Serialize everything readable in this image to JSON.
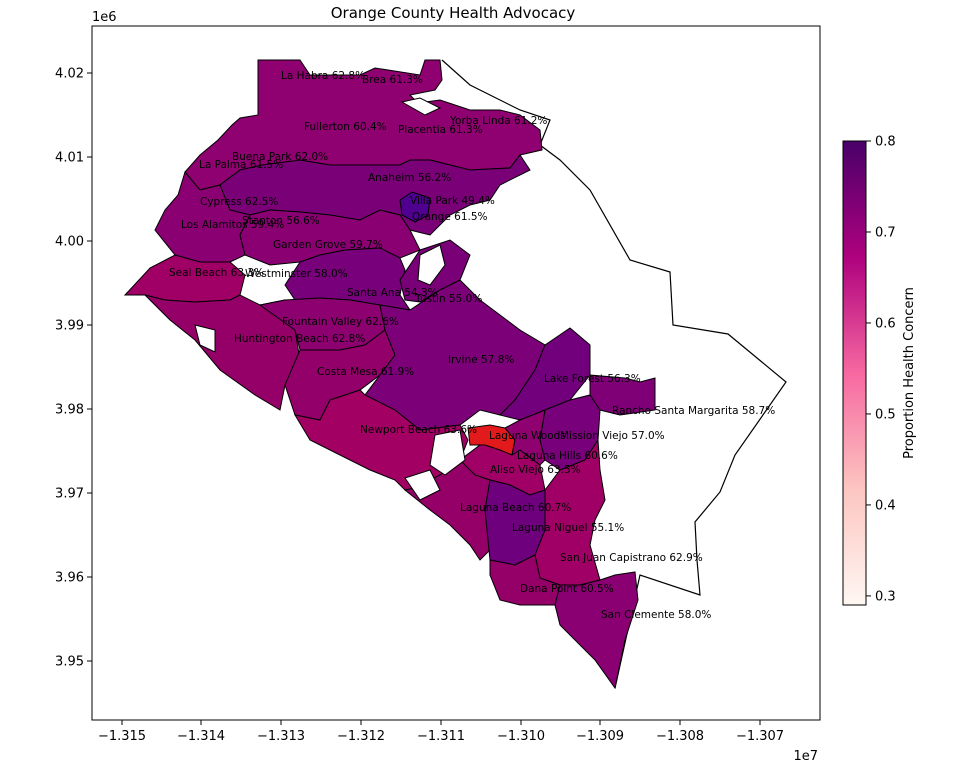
{
  "title": "Orange County Health Advocacy",
  "x_offset_label": "1e7",
  "y_offset_label": "1e6",
  "x_ticks": [
    "−1.315",
    "−1.314",
    "−1.313",
    "−1.312",
    "−1.311",
    "−1.310",
    "−1.309",
    "−1.308",
    "−1.307"
  ],
  "y_ticks": [
    "4.02",
    "4.01",
    "4.00",
    "3.99",
    "3.98",
    "3.97",
    "3.96",
    "3.95"
  ],
  "colorbar": {
    "label": "Proportion Health Concern",
    "ticks": [
      "0.8",
      "0.7",
      "0.6",
      "0.5",
      "0.4",
      "0.3"
    ],
    "colors": {
      "low": "#fff7f3",
      "mid1": "#fcc5c0",
      "mid2": "#f768a1",
      "mid3": "#ae017e",
      "high": "#49006a"
    }
  },
  "highlight_color": "#e31a1c",
  "chart_data": {
    "type": "choropleth",
    "title": "Orange County Health Advocacy",
    "colorbar_label": "Proportion Health Concern",
    "colorbar_range": [
      0.29,
      0.8
    ],
    "xlim": [
      -13150000,
      -13066000
    ],
    "ylim": [
      3943000,
      4025500
    ],
    "cities": [
      {
        "name": "La Habra 62.8%",
        "value": 0.628
      },
      {
        "name": "Brea 61.3%",
        "value": 0.613
      },
      {
        "name": "Yorba Linda 61.2%",
        "value": 0.612
      },
      {
        "name": "Fullerton 60.4%",
        "value": 0.604
      },
      {
        "name": "Placentia 61.3%",
        "value": 0.613
      },
      {
        "name": "Buena Park 62.0%",
        "value": 0.62
      },
      {
        "name": "La Palma 61.5%",
        "value": 0.615
      },
      {
        "name": "Anaheim 56.2%",
        "value": 0.562
      },
      {
        "name": "Cypress 62.5%",
        "value": 0.625
      },
      {
        "name": "Villa Park 49.4%",
        "value": 0.494
      },
      {
        "name": "Stanton 56.6%",
        "value": 0.566
      },
      {
        "name": "Orange 61.5%",
        "value": 0.615
      },
      {
        "name": "Los Alamitos 59.4%",
        "value": 0.594
      },
      {
        "name": "Garden Grove 59.7%",
        "value": 0.597
      },
      {
        "name": "Seal Beach 63.3%",
        "value": 0.633
      },
      {
        "name": "Westminster 58.0%",
        "value": 0.58
      },
      {
        "name": "Santa Ana 54.3%",
        "value": 0.543
      },
      {
        "name": "Tustin 55.0%",
        "value": 0.55
      },
      {
        "name": "Fountain Valley 62.6%",
        "value": 0.626
      },
      {
        "name": "Huntington Beach 62.8%",
        "value": 0.628
      },
      {
        "name": "Irvine 57.8%",
        "value": 0.578
      },
      {
        "name": "Costa Mesa 61.9%",
        "value": 0.619
      },
      {
        "name": "Lake Forest 56.3%",
        "value": 0.563
      },
      {
        "name": "Rancho Santa Margarita 58.7%",
        "value": 0.587
      },
      {
        "name": "Newport Beach 63.6%",
        "value": 0.636
      },
      {
        "name": "Laguna Woods",
        "value": null
      },
      {
        "name": "Mission Viejo 57.0%",
        "value": 0.57
      },
      {
        "name": "Laguna Hills 60.6%",
        "value": 0.606
      },
      {
        "name": "Aliso Viejo 63.5%",
        "value": 0.635
      },
      {
        "name": "Laguna Beach 60.7%",
        "value": 0.607
      },
      {
        "name": "Laguna Niguel 55.1%",
        "value": 0.551
      },
      {
        "name": "San Juan Capistrano 62.9%",
        "value": 0.629
      },
      {
        "name": "Dana Point 60.5%",
        "value": 0.605
      },
      {
        "name": "San Clemente 58.0%",
        "value": 0.58
      }
    ]
  }
}
